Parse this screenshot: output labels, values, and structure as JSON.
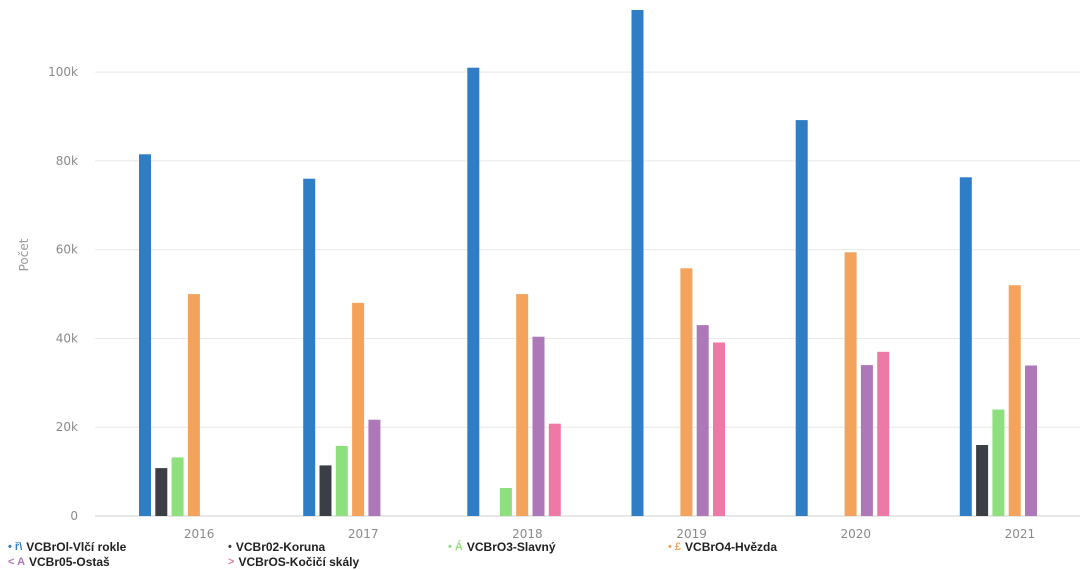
{
  "chart_data": {
    "type": "bar",
    "ylabel": "Počet",
    "xlabel": "",
    "ylim": [
      0,
      114000
    ],
    "yticks": [
      0,
      20000,
      40000,
      60000,
      80000,
      100000
    ],
    "ytick_labels": [
      "0",
      "20k",
      "40k",
      "60k",
      "80k",
      "100k"
    ],
    "categories": [
      "2016",
      "2017",
      "2018",
      "2019",
      "2020",
      "2021"
    ],
    "grid": true,
    "legend_position": "bottom",
    "series": [
      {
        "name": "VCBrOl-Vlčí rokle",
        "marker": "• ř\\",
        "color": "#2f7ec5",
        "values": [
          81500,
          76000,
          101000,
          114000,
          89200,
          76300
        ]
      },
      {
        "name": "VCBr02-Koruna",
        "marker": "•",
        "color": "#3b3f45",
        "values": [
          10800,
          11400,
          null,
          null,
          null,
          16000
        ]
      },
      {
        "name": "VCBrO3-Slavný",
        "marker": "• Á",
        "color": "#8ee07e",
        "values": [
          13200,
          15800,
          6300,
          null,
          null,
          24000
        ]
      },
      {
        "name": "VCBrO4-Hvězda",
        "marker": "• £",
        "color": "#f3a35c",
        "values": [
          50000,
          48000,
          50000,
          55800,
          59400,
          52000
        ]
      },
      {
        "name": "VCBr05-Ostaš",
        "marker": "< A",
        "color": "#ad78b8",
        "values": [
          null,
          21700,
          40400,
          43000,
          34000,
          33900
        ]
      },
      {
        "name": "VCBrOS-Kočičí skály",
        "marker": ">",
        "color": "#ee78a6",
        "values": [
          null,
          null,
          20800,
          39100,
          37000,
          null
        ]
      }
    ]
  }
}
